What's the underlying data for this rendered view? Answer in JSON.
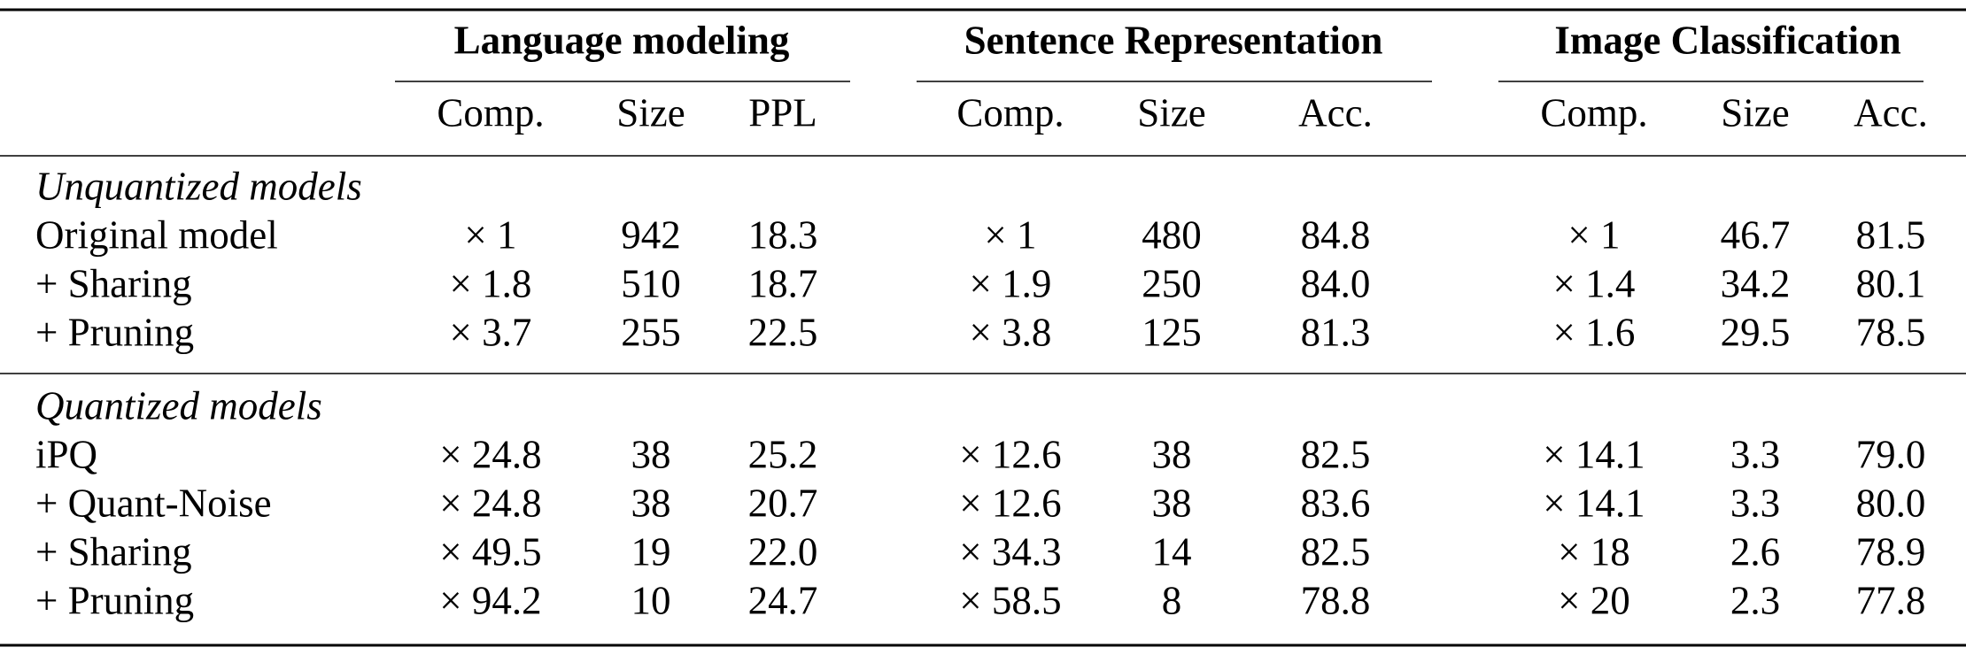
{
  "table": {
    "groups": [
      {
        "title": "Language modeling",
        "columns": [
          "Comp.",
          "Size",
          "PPL"
        ]
      },
      {
        "title": "Sentence Representation",
        "columns": [
          "Comp.",
          "Size",
          "Acc."
        ]
      },
      {
        "title": "Image Classification",
        "columns": [
          "Comp.",
          "Size",
          "Acc."
        ]
      }
    ],
    "sections": [
      {
        "title": "Unquantized models",
        "rows": [
          {
            "label": "Original model",
            "cells": [
              "× 1",
              "942",
              "18.3",
              "× 1",
              "480",
              "84.8",
              "× 1",
              "46.7",
              "81.5"
            ]
          },
          {
            "label": "+ Sharing",
            "cells": [
              "× 1.8",
              "510",
              "18.7",
              "× 1.9",
              "250",
              "84.0",
              "× 1.4",
              "34.2",
              "80.1"
            ]
          },
          {
            "label": "+ Pruning",
            "cells": [
              "× 3.7",
              "255",
              "22.5",
              "× 3.8",
              "125",
              "81.3",
              "× 1.6",
              "29.5",
              "78.5"
            ]
          }
        ]
      },
      {
        "title": "Quantized models",
        "rows": [
          {
            "label": "iPQ",
            "cells": [
              "× 24.8",
              "38",
              "25.2",
              "× 12.6",
              "38",
              "82.5",
              "× 14.1",
              "3.3",
              "79.0"
            ]
          },
          {
            "label": "+ Quant-Noise",
            "cells": [
              "× 24.8",
              "38",
              "20.7",
              "× 12.6",
              "38",
              "83.6",
              "× 14.1",
              "3.3",
              "80.0"
            ]
          },
          {
            "label": "+ Sharing",
            "cells": [
              "× 49.5",
              "19",
              "22.0",
              "× 34.3",
              "14",
              "82.5",
              "× 18",
              "2.6",
              "78.9"
            ]
          },
          {
            "label": "+ Pruning",
            "cells": [
              "× 94.2",
              "10",
              "24.7",
              "× 58.5",
              "8",
              "78.8",
              "× 20",
              "2.3",
              "77.8"
            ]
          }
        ]
      }
    ]
  }
}
